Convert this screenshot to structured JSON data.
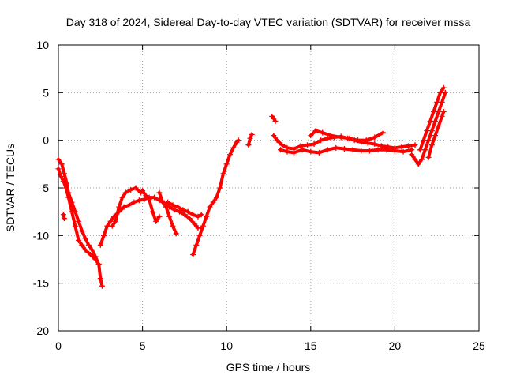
{
  "chart_data": {
    "type": "scatter",
    "title": "Day 318 of 2024, Sidereal Day-to-day VTEC variation (SDTVAR) for receiver mssa",
    "xlabel": "GPS time / hours",
    "ylabel": "SDTVAR / TECUs",
    "xlim": [
      0,
      25
    ],
    "ylim": [
      -20,
      10
    ],
    "xticks": [
      0,
      5,
      10,
      15,
      20,
      25
    ],
    "yticks": [
      -20,
      -15,
      -10,
      -5,
      0,
      5,
      10
    ],
    "xtick_labels": [
      "0",
      "5",
      "10",
      "15",
      "20",
      "25"
    ],
    "ytick_labels": [
      "-20",
      "-15",
      "-10",
      "-5",
      "0",
      "5",
      "10"
    ],
    "grid": true,
    "marker": "+",
    "series": [
      {
        "name": "track-a",
        "color": "#ff0000",
        "points": [
          [
            0.0,
            -2.0
          ],
          [
            0.2,
            -2.5
          ],
          [
            0.35,
            -3.5
          ],
          [
            0.5,
            -4.5
          ],
          [
            0.6,
            -5.5
          ],
          [
            0.8,
            -6.5
          ],
          [
            1.0,
            -7.5
          ],
          [
            1.2,
            -8.5
          ],
          [
            1.4,
            -9.5
          ],
          [
            1.6,
            -10.3
          ],
          [
            1.8,
            -11.0
          ],
          [
            2.0,
            -11.5
          ],
          [
            2.2,
            -12.2
          ],
          [
            2.4,
            -13.0
          ],
          [
            2.5,
            -14.5
          ],
          [
            2.6,
            -15.3
          ]
        ]
      },
      {
        "name": "track-b",
        "color": "#ff0000",
        "points": [
          [
            0.0,
            -3.0
          ],
          [
            0.15,
            -3.8
          ],
          [
            0.3,
            -4.3
          ],
          [
            0.45,
            -5.0
          ],
          [
            0.6,
            -6.0
          ],
          [
            0.8,
            -7.5
          ],
          [
            1.0,
            -9.0
          ],
          [
            1.2,
            -10.5
          ],
          [
            1.4,
            -11.0
          ],
          [
            1.6,
            -11.5
          ],
          [
            1.9,
            -12.0
          ],
          [
            2.2,
            -12.5
          ],
          [
            2.4,
            -13.0
          ]
        ]
      },
      {
        "name": "track-c",
        "color": "#ff0000",
        "points": [
          [
            0.3,
            -7.8
          ],
          [
            0.35,
            -8.2
          ]
        ]
      },
      {
        "name": "track-d",
        "color": "#ff0000",
        "points": [
          [
            2.5,
            -11.0
          ],
          [
            2.7,
            -10.0
          ],
          [
            2.9,
            -9.0
          ],
          [
            3.1,
            -8.5
          ],
          [
            3.3,
            -8.0
          ],
          [
            3.6,
            -7.5
          ],
          [
            3.9,
            -7.0
          ],
          [
            4.2,
            -6.8
          ],
          [
            4.5,
            -6.5
          ],
          [
            4.8,
            -6.3
          ],
          [
            5.1,
            -6.2
          ],
          [
            5.4,
            -6.0
          ],
          [
            5.7,
            -6.0
          ],
          [
            6.0,
            -6.3
          ],
          [
            6.3,
            -6.6
          ],
          [
            6.6,
            -7.0
          ],
          [
            6.9,
            -7.3
          ],
          [
            7.2,
            -7.5
          ],
          [
            7.5,
            -7.8
          ],
          [
            7.8,
            -8.2
          ],
          [
            8.1,
            -8.8
          ],
          [
            8.3,
            -9.2
          ]
        ]
      },
      {
        "name": "track-e",
        "color": "#ff0000",
        "points": [
          [
            3.2,
            -9.0
          ],
          [
            3.4,
            -8.5
          ],
          [
            3.6,
            -7.0
          ],
          [
            3.8,
            -6.0
          ],
          [
            4.0,
            -5.5
          ],
          [
            4.3,
            -5.2
          ],
          [
            4.6,
            -5.0
          ],
          [
            4.9,
            -5.5
          ],
          [
            5.0,
            -5.3
          ],
          [
            5.2,
            -5.8
          ],
          [
            5.4,
            -6.2
          ],
          [
            5.6,
            -7.5
          ],
          [
            5.8,
            -8.5
          ],
          [
            6.0,
            -8.0
          ]
        ]
      },
      {
        "name": "track-f",
        "color": "#ff0000",
        "points": [
          [
            6.0,
            -5.5
          ],
          [
            6.2,
            -6.5
          ],
          [
            6.4,
            -7.0
          ],
          [
            6.6,
            -8.0
          ],
          [
            6.8,
            -9.0
          ],
          [
            7.0,
            -9.8
          ]
        ]
      },
      {
        "name": "track-g",
        "color": "#ff0000",
        "points": [
          [
            6.5,
            -6.5
          ],
          [
            6.8,
            -6.8
          ],
          [
            7.1,
            -7.0
          ],
          [
            7.4,
            -7.3
          ],
          [
            7.7,
            -7.5
          ],
          [
            8.0,
            -7.8
          ],
          [
            8.3,
            -8.0
          ],
          [
            8.5,
            -7.8
          ]
        ]
      },
      {
        "name": "track-h",
        "color": "#ff0000",
        "points": [
          [
            8.0,
            -12.0
          ],
          [
            8.2,
            -11.0
          ],
          [
            8.4,
            -10.0
          ],
          [
            8.6,
            -9.0
          ],
          [
            8.8,
            -8.0
          ],
          [
            9.0,
            -7.0
          ],
          [
            9.2,
            -6.5
          ],
          [
            9.4,
            -6.0
          ],
          [
            9.6,
            -5.0
          ],
          [
            9.8,
            -3.5
          ],
          [
            10.0,
            -2.5
          ],
          [
            10.2,
            -1.5
          ],
          [
            10.4,
            -0.8
          ],
          [
            10.6,
            -0.2
          ],
          [
            10.7,
            0.0
          ]
        ]
      },
      {
        "name": "track-i",
        "color": "#ff0000",
        "points": [
          [
            11.3,
            -0.5
          ],
          [
            11.4,
            0.2
          ],
          [
            11.5,
            0.6
          ]
        ]
      },
      {
        "name": "track-j",
        "color": "#ff0000",
        "points": [
          [
            12.7,
            2.5
          ],
          [
            12.8,
            2.3
          ],
          [
            12.9,
            2.0
          ]
        ]
      },
      {
        "name": "track-k",
        "color": "#ff0000",
        "points": [
          [
            12.8,
            0.5
          ],
          [
            13.0,
            0.0
          ],
          [
            13.3,
            -0.5
          ],
          [
            13.6,
            -0.8
          ],
          [
            14.0,
            -0.9
          ],
          [
            14.4,
            -0.6
          ],
          [
            14.8,
            -0.5
          ],
          [
            15.2,
            -0.4
          ],
          [
            15.6,
            0.0
          ],
          [
            16.0,
            0.2
          ],
          [
            16.4,
            0.3
          ],
          [
            16.8,
            0.4
          ],
          [
            17.2,
            0.2
          ],
          [
            17.6,
            0.0
          ],
          [
            18.0,
            -0.2
          ],
          [
            18.4,
            -0.3
          ],
          [
            18.8,
            -0.4
          ],
          [
            19.2,
            -0.6
          ],
          [
            19.6,
            -0.7
          ],
          [
            20.0,
            -0.8
          ],
          [
            20.4,
            -0.7
          ],
          [
            20.8,
            -0.6
          ],
          [
            21.2,
            -0.5
          ]
        ]
      },
      {
        "name": "track-l",
        "color": "#ff0000",
        "points": [
          [
            13.2,
            -1.0
          ],
          [
            13.6,
            -1.2
          ],
          [
            14.0,
            -1.3
          ],
          [
            14.5,
            -1.0
          ],
          [
            15.0,
            -1.2
          ],
          [
            15.5,
            -1.3
          ],
          [
            16.0,
            -1.0
          ],
          [
            16.5,
            -0.8
          ],
          [
            17.0,
            -0.9
          ],
          [
            17.5,
            -1.0
          ],
          [
            18.0,
            -1.1
          ],
          [
            18.5,
            -1.1
          ],
          [
            19.0,
            -1.0
          ],
          [
            19.5,
            -1.0
          ],
          [
            20.0,
            -1.1
          ],
          [
            20.5,
            -1.2
          ],
          [
            21.0,
            -1.0
          ]
        ]
      },
      {
        "name": "track-m",
        "color": "#ff0000",
        "points": [
          [
            15.0,
            0.5
          ],
          [
            15.3,
            1.0
          ],
          [
            15.7,
            0.8
          ],
          [
            16.2,
            0.5
          ],
          [
            16.8,
            0.3
          ],
          [
            17.3,
            0.2
          ],
          [
            17.8,
            0.0
          ],
          [
            18.3,
            0.0
          ],
          [
            18.8,
            0.3
          ],
          [
            19.3,
            0.8
          ]
        ]
      },
      {
        "name": "track-n",
        "color": "#ff0000",
        "points": [
          [
            21.0,
            -1.5
          ],
          [
            21.2,
            -2.0
          ],
          [
            21.4,
            -2.5
          ],
          [
            21.6,
            -2.0
          ],
          [
            21.8,
            -1.0
          ],
          [
            22.0,
            0.0
          ],
          [
            22.2,
            1.0
          ],
          [
            22.4,
            2.0
          ],
          [
            22.6,
            3.0
          ],
          [
            22.8,
            4.0
          ],
          [
            23.0,
            5.0
          ]
        ]
      },
      {
        "name": "track-o",
        "color": "#ff0000",
        "points": [
          [
            21.5,
            -1.0
          ],
          [
            21.7,
            0.0
          ],
          [
            21.9,
            1.0
          ],
          [
            22.1,
            2.0
          ],
          [
            22.3,
            3.0
          ],
          [
            22.5,
            4.0
          ],
          [
            22.7,
            5.0
          ],
          [
            22.9,
            5.5
          ]
        ]
      },
      {
        "name": "track-p",
        "color": "#ff0000",
        "points": [
          [
            22.0,
            -1.8
          ],
          [
            22.2,
            -0.5
          ],
          [
            22.4,
            0.5
          ],
          [
            22.6,
            1.5
          ],
          [
            22.8,
            2.5
          ],
          [
            22.9,
            3.0
          ]
        ]
      }
    ]
  }
}
